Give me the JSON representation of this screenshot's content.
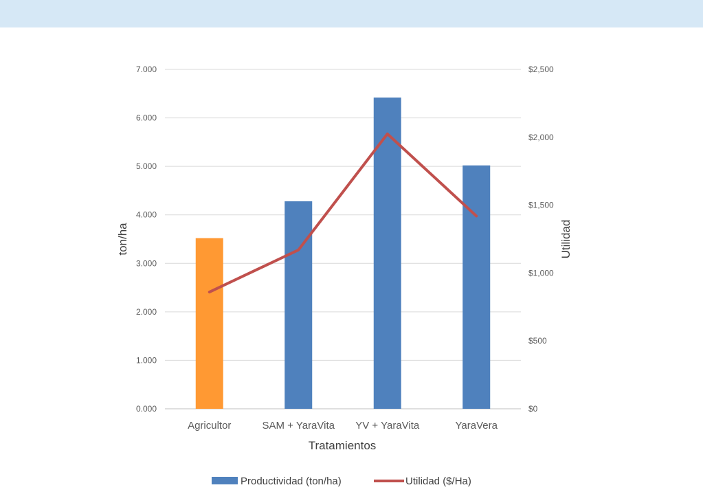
{
  "chart_data": {
    "type": "bar",
    "categories": [
      "Agricultor",
      "SAM + YaraVita",
      "YV + YaraVita",
      "YaraVera"
    ],
    "bar_colors": [
      "#ff9933",
      "#4f81bd",
      "#4f81bd",
      "#4f81bd"
    ],
    "series": [
      {
        "name": "Productividad (ton/ha)",
        "type": "bar",
        "axis": "left",
        "color": "#4f81bd",
        "values": [
          3.52,
          4.28,
          6.42,
          5.02
        ]
      },
      {
        "name": "Utilidad ($/Ha)",
        "type": "line",
        "axis": "right",
        "color": "#c0504d",
        "values": [
          860,
          1170,
          2025,
          1420
        ]
      }
    ],
    "xlabel": "Tratamientos",
    "ylabel": "ton/ha",
    "y2label": "Utilidad",
    "ylim": [
      0,
      7
    ],
    "y2lim": [
      0,
      2500
    ],
    "yticks": [
      "0.000",
      "1.000",
      "2.000",
      "3.000",
      "4.000",
      "5.000",
      "6.000",
      "7.000"
    ],
    "y2ticks": [
      "$0",
      "$500",
      "$1,000",
      "$1,500",
      "$2,000",
      "$2,500"
    ],
    "grid": true,
    "legend_position": "bottom"
  }
}
